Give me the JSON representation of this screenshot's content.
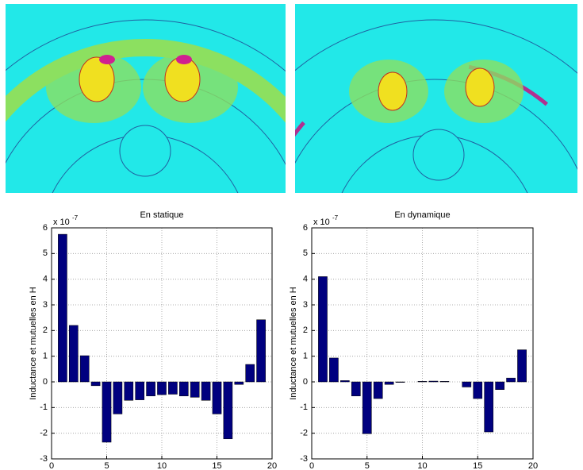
{
  "chart_data": [
    {
      "type": "bar",
      "title": "En statique",
      "y_label": "Inductance et mutuelles en H",
      "scale_label": "x 10",
      "scale_exponent": "-7",
      "x": [
        1,
        2,
        3,
        4,
        5,
        6,
        7,
        8,
        9,
        10,
        11,
        12,
        13,
        14,
        15,
        16,
        17,
        18,
        19
      ],
      "values": [
        5.75,
        2.2,
        1.02,
        -0.15,
        -2.35,
        -1.25,
        -0.72,
        -0.7,
        -0.55,
        -0.5,
        -0.48,
        -0.55,
        -0.6,
        -0.72,
        -1.25,
        -2.22,
        -0.1,
        0.68,
        2.42
      ],
      "color": "#00007f",
      "xlim": [
        0,
        20
      ],
      "xticks": [
        0,
        5,
        10,
        15,
        20
      ],
      "ylim": [
        -3,
        6
      ],
      "yticks": [
        -3,
        -2,
        -1,
        0,
        1,
        2,
        3,
        4,
        5,
        6
      ],
      "grid": true
    },
    {
      "type": "bar",
      "title": "En dynamique",
      "y_label": "Inductance et mutuelles en H",
      "scale_label": "x 10",
      "scale_exponent": "-7",
      "x": [
        1,
        2,
        3,
        4,
        5,
        6,
        7,
        8,
        9,
        10,
        11,
        12,
        13,
        14,
        15,
        16,
        17,
        18,
        19
      ],
      "values": [
        4.1,
        0.93,
        0.05,
        -0.55,
        -2.02,
        -0.65,
        -0.1,
        -0.02,
        0,
        0.02,
        0.03,
        0.02,
        0,
        -0.2,
        -0.65,
        -1.95,
        -0.3,
        0.15,
        1.25
      ],
      "color": "#00007f",
      "xlim": [
        0,
        20
      ],
      "xticks": [
        0,
        5,
        10,
        15,
        20
      ],
      "ylim": [
        -3,
        6
      ],
      "yticks": [
        -3,
        -2,
        -1,
        0,
        1,
        2,
        3,
        4,
        5,
        6
      ],
      "grid": true
    }
  ]
}
